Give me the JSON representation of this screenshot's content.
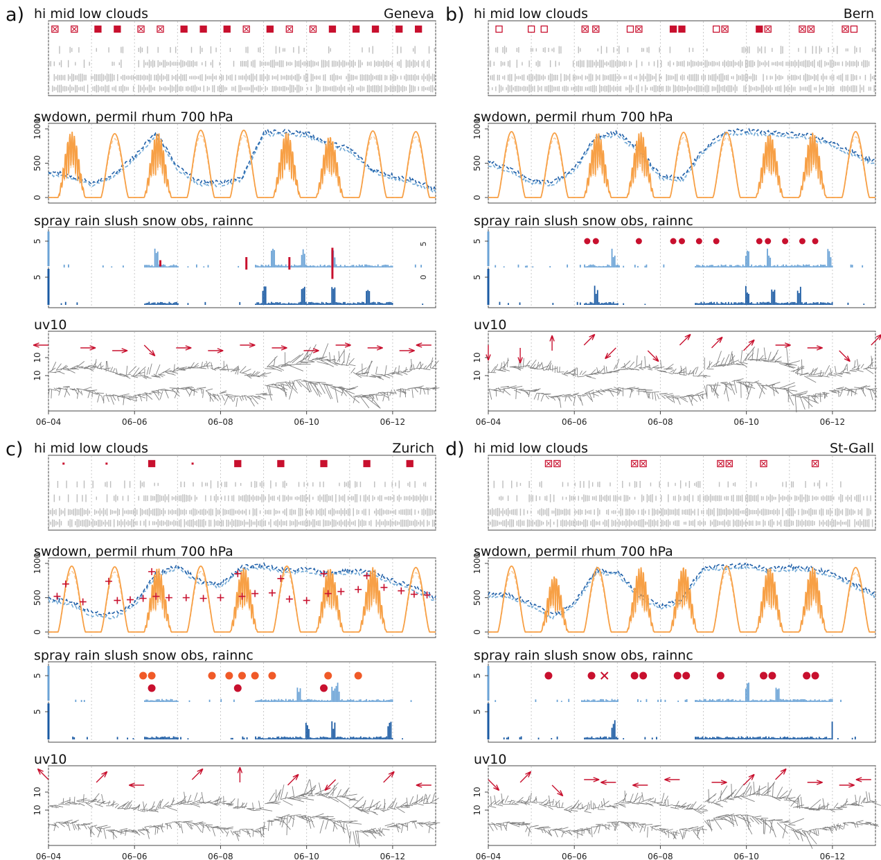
{
  "figure": {
    "x_ticks": [
      "06–04",
      "06–06",
      "06–08",
      "06–10",
      "06–12"
    ],
    "day_range": [
      4.0,
      13.0
    ],
    "panel_titles": {
      "clouds": "hi mid low clouds",
      "swdown": "swdown, permil rhum 700 hPa",
      "precip": "spray rain slush snow obs, rainnc",
      "wind": "uv10"
    },
    "colors": {
      "obs_red": "#c8102e",
      "cloud_gray": "#bdbdbd",
      "sw_orange": "#f7a046",
      "rh_dark": "#1f5fa8",
      "rh_light": "#6fa8d6",
      "rain_light": "#6ba3d6",
      "rain_dark": "#1a5aa3",
      "wind_gray": "#808080",
      "spray_orange": "#f05a28"
    }
  },
  "panels": [
    {
      "letter": "a)",
      "station": "Geneva",
      "swdown_yticks": [
        "0",
        "500",
        "1000"
      ],
      "precip_yticks": [
        "5",
        "5"
      ],
      "precip_right_ticks": [
        "5",
        "0"
      ],
      "wind_yticks": [
        "10",
        "10"
      ]
    },
    {
      "letter": "b)",
      "station": "Bern",
      "swdown_yticks": [
        "0",
        "500",
        "1000"
      ],
      "precip_yticks": [
        "5",
        "5"
      ],
      "precip_right_ticks": [],
      "wind_yticks": [
        "10",
        "10"
      ]
    },
    {
      "letter": "c)",
      "station": "Zurich",
      "swdown_yticks": [
        "0",
        "500",
        "1000"
      ],
      "precip_yticks": [
        "5",
        "5"
      ],
      "precip_right_ticks": [],
      "wind_yticks": [
        "10",
        "10"
      ]
    },
    {
      "letter": "d)",
      "station": "St-Gall",
      "swdown_yticks": [
        "0",
        "500",
        "1000"
      ],
      "precip_yticks": [
        "5",
        "5"
      ],
      "precip_right_ticks": [],
      "wind_yticks": [
        "10",
        "10"
      ]
    }
  ],
  "chart_data": [
    {
      "type": "line",
      "panel": "a",
      "station": "Geneva",
      "x_unit": "day of June",
      "cloud_obs": [
        {
          "day": 4.15,
          "kind": "crossed"
        },
        {
          "day": 4.6,
          "kind": "crossed"
        },
        {
          "day": 5.15,
          "kind": "filled"
        },
        {
          "day": 5.6,
          "kind": "filled"
        },
        {
          "day": 6.15,
          "kind": "crossed"
        },
        {
          "day": 6.6,
          "kind": "crossed"
        },
        {
          "day": 7.15,
          "kind": "filled"
        },
        {
          "day": 7.6,
          "kind": "filled"
        },
        {
          "day": 8.15,
          "kind": "filled"
        },
        {
          "day": 8.6,
          "kind": "crossed"
        },
        {
          "day": 9.15,
          "kind": "filled"
        },
        {
          "day": 9.6,
          "kind": "crossed"
        },
        {
          "day": 10.15,
          "kind": "crossed"
        },
        {
          "day": 10.6,
          "kind": "filled"
        },
        {
          "day": 11.15,
          "kind": "filled"
        },
        {
          "day": 11.6,
          "kind": "filled"
        },
        {
          "day": 12.15,
          "kind": "filled"
        },
        {
          "day": 12.6,
          "kind": "filled"
        }
      ],
      "swdown_peaks": [
        960,
        930,
        950,
        980,
        980,
        950,
        900,
        970,
        960
      ],
      "swdown_noisy_days": [
        4,
        6,
        9,
        10
      ],
      "rhum_700": {
        "days": [
          4.0,
          4.5,
          5.0,
          5.5,
          6.0,
          6.5,
          7.0,
          7.5,
          8.0,
          8.5,
          9.0,
          9.5,
          10.0,
          10.5,
          11.0,
          11.5,
          12.0,
          12.5,
          13.0
        ],
        "values": [
          380,
          320,
          220,
          330,
          600,
          950,
          450,
          230,
          220,
          300,
          950,
          960,
          940,
          800,
          720,
          420,
          320,
          250,
          120
        ]
      },
      "obs_precip": [
        {
          "day": 6.6,
          "size": 1
        },
        {
          "day": 8.6,
          "size": 2
        },
        {
          "day": 9.6,
          "size": 2
        },
        {
          "day": 10.6,
          "size": 5
        }
      ],
      "rain_light_days": [
        6.5,
        9.2,
        9.9,
        10.6
      ],
      "rain_dark_days": [
        9.0,
        9.9,
        10.6,
        11.4
      ],
      "rain_spike_day": 4.0,
      "wind_obs_dirs": [
        180,
        0,
        0,
        315,
        0,
        0,
        0,
        0,
        0,
        0,
        0,
        0,
        180
      ]
    },
    {
      "type": "line",
      "panel": "b",
      "station": "Bern",
      "x_unit": "day of June",
      "cloud_obs": [
        {
          "day": 4.25,
          "kind": "open"
        },
        {
          "day": 5.0,
          "kind": "open"
        },
        {
          "day": 5.3,
          "kind": "open"
        },
        {
          "day": 6.25,
          "kind": "crossed"
        },
        {
          "day": 6.5,
          "kind": "crossed"
        },
        {
          "day": 7.3,
          "kind": "open"
        },
        {
          "day": 7.5,
          "kind": "crossed"
        },
        {
          "day": 8.3,
          "kind": "filled"
        },
        {
          "day": 8.5,
          "kind": "filled"
        },
        {
          "day": 9.3,
          "kind": "open"
        },
        {
          "day": 9.5,
          "kind": "crossed"
        },
        {
          "day": 10.3,
          "kind": "filled"
        },
        {
          "day": 10.5,
          "kind": "crossed"
        },
        {
          "day": 11.3,
          "kind": "crossed"
        },
        {
          "day": 11.5,
          "kind": "crossed"
        },
        {
          "day": 12.3,
          "kind": "crossed"
        },
        {
          "day": 12.5,
          "kind": "open"
        }
      ],
      "swdown_peaks": [
        960,
        940,
        950,
        960,
        950,
        950,
        930,
        950,
        960
      ],
      "swdown_noisy_days": [
        6,
        7,
        10,
        11
      ],
      "rhum_700": {
        "days": [
          4.0,
          4.5,
          5.0,
          5.5,
          6.0,
          6.5,
          7.0,
          7.5,
          8.0,
          8.5,
          9.0,
          9.5,
          10.0,
          10.5,
          11.0,
          11.5,
          12.0,
          12.5,
          13.0
        ],
        "values": [
          520,
          420,
          250,
          230,
          420,
          900,
          950,
          700,
          320,
          280,
          700,
          960,
          980,
          950,
          930,
          900,
          800,
          650,
          520
        ]
      },
      "obs_precip": [
        {
          "day": 6.3,
          "size": 3
        },
        {
          "day": 6.5,
          "size": 3
        },
        {
          "day": 7.5,
          "size": 3
        },
        {
          "day": 8.3,
          "size": 3
        },
        {
          "day": 8.5,
          "size": 3
        },
        {
          "day": 8.9,
          "size": 3
        },
        {
          "day": 9.3,
          "size": 3
        },
        {
          "day": 10.3,
          "size": 3
        },
        {
          "day": 10.5,
          "size": 3
        },
        {
          "day": 10.9,
          "size": 3
        },
        {
          "day": 11.3,
          "size": 3
        },
        {
          "day": 11.6,
          "size": 3
        }
      ],
      "rain_light_days": [
        6.9,
        10.0,
        10.5,
        11.9
      ],
      "rain_dark_days": [
        6.5,
        10.0,
        10.6,
        11.2
      ],
      "rain_spike_day": 4.0,
      "wind_obs_dirs": [
        270,
        270,
        90,
        45,
        225,
        315,
        45,
        45,
        45,
        0,
        0,
        315,
        45
      ]
    },
    {
      "type": "line",
      "panel": "c",
      "station": "Zurich",
      "x_unit": "day of June",
      "cloud_obs": [
        {
          "day": 4.35,
          "kind": "dot"
        },
        {
          "day": 5.35,
          "kind": "dot"
        },
        {
          "day": 6.4,
          "kind": "filled"
        },
        {
          "day": 7.35,
          "kind": "dot"
        },
        {
          "day": 8.4,
          "kind": "filled"
        },
        {
          "day": 9.4,
          "kind": "filled"
        },
        {
          "day": 10.4,
          "kind": "filled"
        },
        {
          "day": 11.4,
          "kind": "filled"
        },
        {
          "day": 12.4,
          "kind": "filled"
        }
      ],
      "swdown_peaks": [
        960,
        950,
        940,
        960,
        950,
        960,
        940,
        950,
        940
      ],
      "swdown_noisy_days": [
        6,
        8,
        10,
        11
      ],
      "rh_obs_plus": [
        {
          "day": 4.2,
          "v": 520
        },
        {
          "day": 4.4,
          "v": 700
        },
        {
          "day": 4.8,
          "v": 440
        },
        {
          "day": 5.4,
          "v": 740
        },
        {
          "day": 5.6,
          "v": 460
        },
        {
          "day": 5.9,
          "v": 470
        },
        {
          "day": 6.2,
          "v": 490
        },
        {
          "day": 6.4,
          "v": 880
        },
        {
          "day": 6.5,
          "v": 520
        },
        {
          "day": 6.8,
          "v": 500
        },
        {
          "day": 7.2,
          "v": 500
        },
        {
          "day": 7.6,
          "v": 490
        },
        {
          "day": 8.0,
          "v": 500
        },
        {
          "day": 8.4,
          "v": 850
        },
        {
          "day": 8.5,
          "v": 520
        },
        {
          "day": 8.8,
          "v": 560
        },
        {
          "day": 9.2,
          "v": 570
        },
        {
          "day": 9.4,
          "v": 780
        },
        {
          "day": 9.6,
          "v": 480
        },
        {
          "day": 10.0,
          "v": 460
        },
        {
          "day": 10.4,
          "v": 850
        },
        {
          "day": 10.5,
          "v": 560
        },
        {
          "day": 10.8,
          "v": 590
        },
        {
          "day": 11.2,
          "v": 620
        },
        {
          "day": 11.4,
          "v": 820
        },
        {
          "day": 11.8,
          "v": 650
        },
        {
          "day": 12.2,
          "v": 600
        },
        {
          "day": 12.5,
          "v": 550
        },
        {
          "day": 12.8,
          "v": 540
        }
      ],
      "rhum_700": {
        "days": [
          4.0,
          4.5,
          5.0,
          5.5,
          6.0,
          6.5,
          7.0,
          7.5,
          8.0,
          8.5,
          9.0,
          9.5,
          10.0,
          10.5,
          11.0,
          11.5,
          12.0,
          12.5,
          13.0
        ],
        "values": [
          500,
          450,
          280,
          250,
          420,
          850,
          970,
          750,
          700,
          950,
          980,
          900,
          920,
          860,
          900,
          880,
          760,
          650,
          500
        ]
      },
      "obs_precip": [
        {
          "day": 6.2,
          "size": 4,
          "row": "top"
        },
        {
          "day": 6.4,
          "size": 4,
          "row": "top"
        },
        {
          "day": 7.8,
          "size": 4,
          "row": "top"
        },
        {
          "day": 8.2,
          "size": 4,
          "row": "top"
        },
        {
          "day": 8.5,
          "size": 4,
          "row": "top"
        },
        {
          "day": 8.8,
          "size": 4,
          "row": "top"
        },
        {
          "day": 9.2,
          "size": 4,
          "row": "top"
        },
        {
          "day": 10.5,
          "size": 4,
          "row": "top"
        },
        {
          "day": 11.2,
          "size": 4,
          "row": "top"
        },
        {
          "day": 6.4,
          "size": 4,
          "row": "low"
        },
        {
          "day": 8.4,
          "size": 4,
          "row": "low"
        },
        {
          "day": 10.4,
          "size": 4,
          "row": "low"
        }
      ],
      "rain_light_days": [
        9.8,
        10.6,
        10.7
      ],
      "rain_dark_days": [
        10.0,
        10.6,
        11.9
      ],
      "rain_spike_day": 4.0,
      "wind_obs_dirs": [
        135,
        45,
        180,
        45,
        90,
        45,
        225,
        45,
        180
      ]
    },
    {
      "type": "line",
      "panel": "d",
      "station": "St-Gall",
      "x_unit": "day of June",
      "cloud_obs": [
        {
          "day": 5.4,
          "kind": "crossed"
        },
        {
          "day": 5.6,
          "kind": "crossed"
        },
        {
          "day": 7.4,
          "kind": "crossed"
        },
        {
          "day": 7.6,
          "kind": "crossed"
        },
        {
          "day": 9.4,
          "kind": "crossed"
        },
        {
          "day": 9.6,
          "kind": "crossed"
        },
        {
          "day": 10.4,
          "kind": "crossed"
        },
        {
          "day": 11.6,
          "kind": "crossed"
        }
      ],
      "swdown_peaks": [
        960,
        820,
        940,
        950,
        960,
        960,
        950,
        950,
        940
      ],
      "swdown_noisy_days": [
        5,
        7,
        8,
        10,
        11
      ],
      "rhum_700": {
        "days": [
          4.0,
          4.5,
          5.0,
          5.5,
          6.0,
          6.5,
          7.0,
          7.5,
          8.0,
          8.5,
          9.0,
          9.5,
          10.0,
          10.5,
          11.0,
          11.5,
          12.0,
          12.5,
          13.0
        ],
        "values": [
          560,
          540,
          420,
          250,
          420,
          900,
          880,
          550,
          380,
          480,
          950,
          960,
          980,
          920,
          950,
          930,
          860,
          700,
          560
        ]
      },
      "obs_precip": [
        {
          "day": 5.4,
          "size": 4
        },
        {
          "day": 6.4,
          "size": 4
        },
        {
          "day": 6.7,
          "size": 4,
          "kind": "x"
        },
        {
          "day": 7.4,
          "size": 4
        },
        {
          "day": 7.6,
          "size": 4
        },
        {
          "day": 8.4,
          "size": 4
        },
        {
          "day": 8.6,
          "size": 4
        },
        {
          "day": 9.4,
          "size": 4
        },
        {
          "day": 10.4,
          "size": 4
        },
        {
          "day": 10.6,
          "size": 4
        },
        {
          "day": 11.4,
          "size": 4
        },
        {
          "day": 11.6,
          "size": 4
        }
      ],
      "rain_light_days": [
        10.0,
        10.7
      ],
      "rain_dark_days": [
        6.9,
        12.0
      ],
      "rain_spike_day": 4.0,
      "wind_obs_dirs": [
        315,
        45,
        315,
        0,
        180,
        180,
        180,
        0,
        45,
        45,
        0,
        0,
        180
      ]
    }
  ]
}
